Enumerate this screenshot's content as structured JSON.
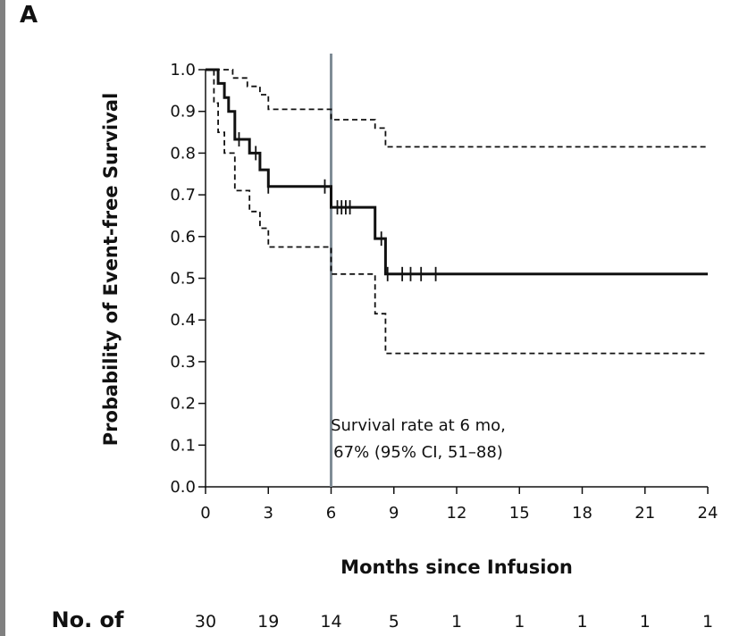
{
  "panel_label": "A",
  "chart_data": {
    "type": "line",
    "xlabel": "Months since Infusion",
    "ylabel": "Probability of Event-free Survival",
    "xlim": [
      0,
      24
    ],
    "ylim": [
      0.0,
      1.0
    ],
    "x_ticks": [
      "0",
      "3",
      "6",
      "9",
      "12",
      "15",
      "18",
      "21",
      "24"
    ],
    "y_ticks": [
      "0.0",
      "0.1",
      "0.2",
      "0.3",
      "0.4",
      "0.5",
      "0.6",
      "0.7",
      "0.8",
      "0.9",
      "1.0"
    ],
    "reference_line": {
      "x": 6,
      "color": "#7f8c96"
    },
    "annotation": [
      "Survival rate at 6 mo,",
      "67% (95% CI, 51–88)"
    ],
    "series": [
      {
        "style": "solid",
        "points": [
          [
            0,
            1.0
          ],
          [
            0.6,
            1.0
          ],
          [
            0.6,
            0.967
          ],
          [
            0.9,
            0.967
          ],
          [
            0.9,
            0.933
          ],
          [
            1.1,
            0.933
          ],
          [
            1.1,
            0.9
          ],
          [
            1.4,
            0.9
          ],
          [
            1.4,
            0.833
          ],
          [
            2.1,
            0.833
          ],
          [
            2.1,
            0.8
          ],
          [
            2.6,
            0.8
          ],
          [
            2.6,
            0.76
          ],
          [
            3.0,
            0.76
          ],
          [
            3.0,
            0.72
          ],
          [
            6.0,
            0.72
          ],
          [
            6.0,
            0.67
          ],
          [
            8.1,
            0.67
          ],
          [
            8.1,
            0.595
          ],
          [
            8.6,
            0.595
          ],
          [
            8.6,
            0.51
          ],
          [
            24,
            0.51
          ]
        ]
      },
      {
        "style": "dashed",
        "points": [
          [
            0,
            1.0
          ],
          [
            1.3,
            1.0
          ],
          [
            1.3,
            0.98
          ],
          [
            2.0,
            0.98
          ],
          [
            2.0,
            0.96
          ],
          [
            2.6,
            0.96
          ],
          [
            2.6,
            0.94
          ],
          [
            3.0,
            0.94
          ],
          [
            3.0,
            0.905
          ],
          [
            6.0,
            0.905
          ],
          [
            6.0,
            0.88
          ],
          [
            8.1,
            0.88
          ],
          [
            8.1,
            0.86
          ],
          [
            8.6,
            0.86
          ],
          [
            8.6,
            0.815
          ],
          [
            24,
            0.815
          ]
        ]
      },
      {
        "style": "dashed",
        "points": [
          [
            0,
            1.0
          ],
          [
            0.4,
            1.0
          ],
          [
            0.4,
            0.92
          ],
          [
            0.6,
            0.92
          ],
          [
            0.6,
            0.85
          ],
          [
            0.9,
            0.85
          ],
          [
            0.9,
            0.8
          ],
          [
            1.4,
            0.8
          ],
          [
            1.4,
            0.71
          ],
          [
            2.1,
            0.71
          ],
          [
            2.1,
            0.66
          ],
          [
            2.6,
            0.66
          ],
          [
            2.6,
            0.62
          ],
          [
            3.0,
            0.62
          ],
          [
            3.0,
            0.575
          ],
          [
            6.0,
            0.575
          ],
          [
            6.0,
            0.51
          ],
          [
            8.1,
            0.51
          ],
          [
            8.1,
            0.415
          ],
          [
            8.6,
            0.415
          ],
          [
            8.6,
            0.32
          ],
          [
            24,
            0.32
          ]
        ]
      }
    ],
    "censor_marks": [
      [
        1.6,
        0.833
      ],
      [
        2.4,
        0.8
      ],
      [
        3.0,
        0.72
      ],
      [
        5.7,
        0.72
      ],
      [
        6.3,
        0.67
      ],
      [
        6.5,
        0.67
      ],
      [
        6.7,
        0.67
      ],
      [
        6.9,
        0.67
      ],
      [
        8.4,
        0.595
      ],
      [
        8.7,
        0.51
      ],
      [
        9.4,
        0.51
      ],
      [
        9.8,
        0.51
      ],
      [
        10.3,
        0.51
      ],
      [
        11.0,
        0.51
      ]
    ],
    "risk_table": {
      "label": "No. of",
      "values": [
        "30",
        "19",
        "14",
        "5",
        "1",
        "1",
        "1",
        "1",
        "1"
      ]
    }
  }
}
